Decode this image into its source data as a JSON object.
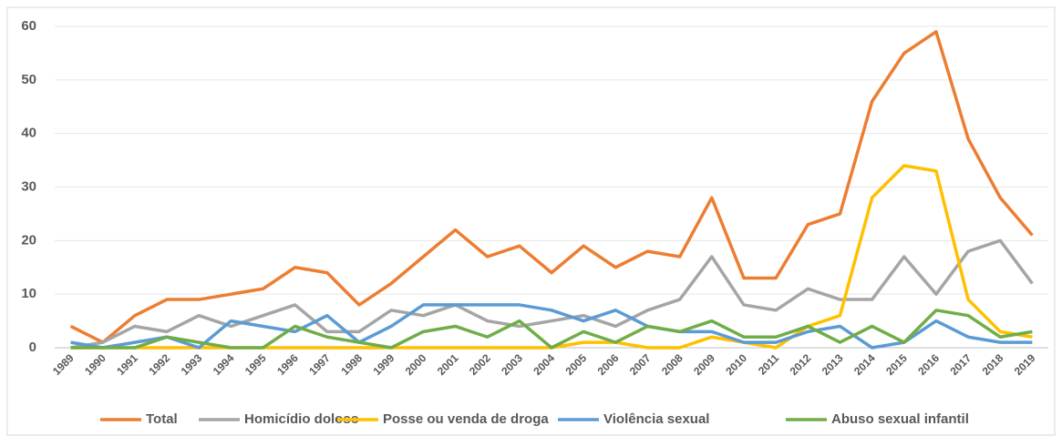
{
  "chart_data": {
    "type": "line",
    "categories": [
      "1989",
      "1990",
      "1991",
      "1992",
      "1993",
      "1994",
      "1995",
      "1996",
      "1997",
      "1998",
      "1999",
      "2000",
      "2001",
      "2002",
      "2003",
      "2004",
      "2005",
      "2006",
      "2007",
      "2008",
      "2009",
      "2010",
      "2011",
      "2012",
      "2013",
      "2014",
      "2015",
      "2016",
      "2017",
      "2018",
      "2019"
    ],
    "series": [
      {
        "name": "Total",
        "color": "#ED7D31",
        "values": [
          4,
          1,
          6,
          9,
          9,
          10,
          11,
          15,
          14,
          8,
          12,
          17,
          22,
          17,
          19,
          14,
          19,
          15,
          18,
          17,
          28,
          13,
          13,
          23,
          25,
          46,
          55,
          59,
          39,
          28,
          21
        ]
      },
      {
        "name": "Homicídio doloso",
        "color": "#A5A5A5",
        "values": [
          0,
          1,
          4,
          3,
          6,
          4,
          6,
          8,
          3,
          3,
          7,
          6,
          8,
          5,
          4,
          5,
          6,
          4,
          7,
          9,
          17,
          8,
          7,
          11,
          9,
          9,
          17,
          10,
          18,
          20,
          12
        ]
      },
      {
        "name": "Posse ou venda de droga",
        "color": "#FFC000",
        "values": [
          0,
          0,
          0,
          0,
          0,
          0,
          0,
          0,
          0,
          0,
          0,
          0,
          0,
          0,
          0,
          0,
          1,
          1,
          0,
          0,
          2,
          1,
          0,
          4,
          6,
          28,
          34,
          33,
          9,
          3,
          2
        ]
      },
      {
        "name": "Violência sexual",
        "color": "#5B9BD5",
        "values": [
          1,
          0,
          1,
          2,
          0,
          5,
          4,
          3,
          6,
          1,
          4,
          8,
          8,
          8,
          8,
          7,
          5,
          7,
          4,
          3,
          3,
          1,
          1,
          3,
          4,
          0,
          1,
          5,
          2,
          1,
          1
        ]
      },
      {
        "name": "Abuso sexual infantil",
        "color": "#70AD47",
        "values": [
          0,
          0,
          0,
          2,
          1,
          0,
          0,
          4,
          2,
          1,
          0,
          3,
          4,
          2,
          5,
          0,
          3,
          1,
          4,
          3,
          5,
          2,
          2,
          4,
          1,
          4,
          1,
          7,
          6,
          2,
          3
        ]
      }
    ],
    "ylim": [
      0,
      60
    ],
    "yticks": [
      0,
      10,
      20,
      30,
      40,
      50,
      60
    ],
    "grid": true,
    "legend": "bottom"
  }
}
